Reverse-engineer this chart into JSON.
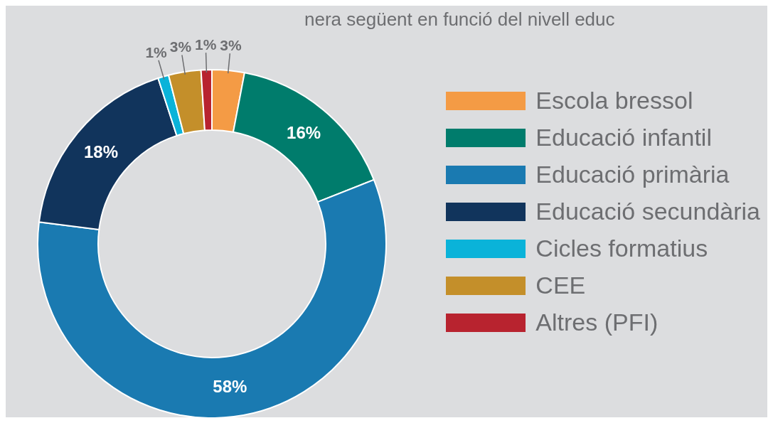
{
  "chart_data": {
    "type": "donut",
    "categories": [
      "Escola bressol",
      "Educació infantil",
      "Educació primària",
      "Educació secundària",
      "Cicles formatius",
      "CEE",
      "Altres (PFI)"
    ],
    "values": [
      3,
      16,
      58,
      18,
      1,
      3,
      1
    ],
    "value_labels": [
      "3%",
      "16%",
      "58%",
      "18%",
      "1%",
      "3%",
      "1%"
    ],
    "colors": [
      "#f49b45",
      "#007c6c",
      "#1a7ab1",
      "#11345c",
      "#0ab3d9",
      "#c48f2a",
      "#b8232f"
    ],
    "legend": "right",
    "annotations": [
      "nera següent en funció del nivell educ"
    ]
  }
}
